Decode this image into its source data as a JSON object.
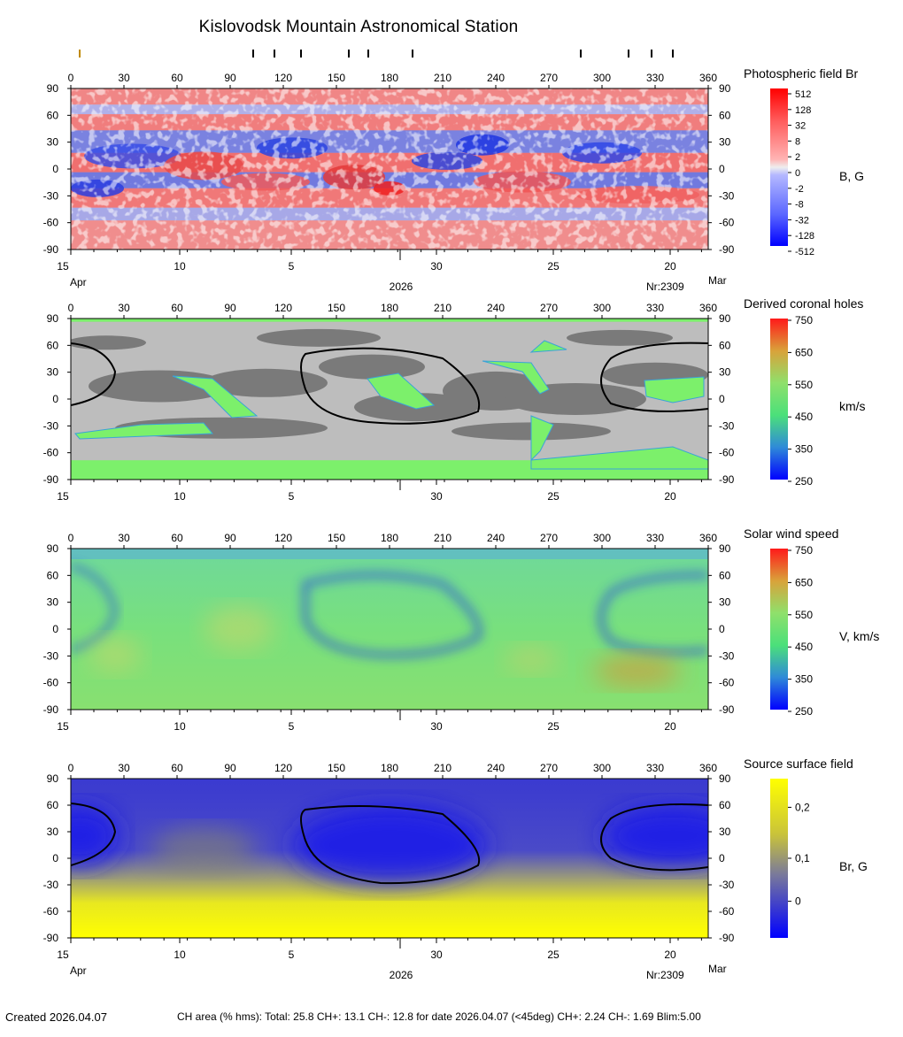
{
  "page": {
    "title": "Kislovodsk Mountain Astronomical Station",
    "created": "Created  2026.04.07",
    "ch_info": "CH area (% hms): Total: 25.8 CH+: 13.1   CH-: 12.8 for date 2026.04.07 (<45deg) CH+: 2.24    CH-: 1.69 Blim:5.00"
  },
  "colors": {
    "frame": "#000000",
    "ch_gray_dark": "#7a7a7a",
    "ch_gray_light": "#bdbdbd",
    "ch_green": "#7cf06b",
    "wind_green": "#72df8a",
    "wind_blue": "#2b55d8",
    "src_blue": "#1a1ae8",
    "src_yellow": "#f7f70a",
    "field_red": "#f05050",
    "field_blue": "#4c63e8"
  },
  "chart_data": [
    {
      "type": "heatmap",
      "title": "Photospheric field Br",
      "unit_label": "B, G",
      "colorbar_ticks": [
        "512",
        "128",
        "32",
        "8",
        "2",
        "0",
        "-2",
        "-8",
        "-32",
        "-128",
        "-512"
      ],
      "x_top": {
        "label": "",
        "ticks": [
          0,
          30,
          60,
          90,
          120,
          150,
          180,
          210,
          240,
          270,
          300,
          330,
          360
        ]
      },
      "y": {
        "ticks": [
          90,
          60,
          30,
          0,
          -30,
          -60,
          -90
        ],
        "range": [
          -90,
          90
        ]
      },
      "date_axis": {
        "ticks": [
          "15",
          "10",
          "5",
          "30",
          "25",
          "20"
        ],
        "left_month": "Apr",
        "right_month": "Mar",
        "year": "2026",
        "rotation": "Nr:2309"
      },
      "marker_longitudes": [
        5,
        103,
        115,
        130,
        157,
        168,
        193,
        288,
        315,
        328,
        340
      ]
    },
    {
      "type": "heatmap",
      "title": "Derived coronal holes",
      "unit_label": "km/s",
      "colorbar_ticks": [
        "750",
        "650",
        "550",
        "450",
        "350",
        "250"
      ],
      "x_top": {
        "ticks": [
          0,
          30,
          60,
          90,
          120,
          150,
          180,
          210,
          240,
          270,
          300,
          330,
          360
        ]
      },
      "y": {
        "ticks": [
          90,
          60,
          30,
          0,
          -30,
          -60,
          -90
        ],
        "range": [
          -90,
          90
        ]
      },
      "date_axis": {
        "ticks": [
          "15",
          "10",
          "5",
          "30",
          "25",
          "20"
        ]
      }
    },
    {
      "type": "heatmap",
      "title": "Solar wind speed",
      "unit_label": "V, km/s",
      "colorbar_ticks": [
        "750",
        "650",
        "550",
        "450",
        "350",
        "250"
      ],
      "x_top": {
        "ticks": [
          0,
          30,
          60,
          90,
          120,
          150,
          180,
          210,
          240,
          270,
          300,
          330,
          360
        ]
      },
      "y": {
        "ticks": [
          90,
          60,
          30,
          0,
          -30,
          -60,
          -90
        ],
        "range": [
          -90,
          90
        ]
      },
      "date_axis": {
        "ticks": [
          "15",
          "10",
          "5",
          "30",
          "25",
          "20"
        ]
      }
    },
    {
      "type": "heatmap",
      "title": "Source surface field",
      "unit_label": "Br, G",
      "colorbar_ticks": [
        "0,2",
        "0,1",
        "0"
      ],
      "x_top": {
        "ticks": [
          0,
          30,
          60,
          90,
          120,
          150,
          180,
          210,
          240,
          270,
          300,
          330,
          360
        ]
      },
      "y": {
        "ticks": [
          90,
          60,
          30,
          0,
          -30,
          -60,
          -90
        ],
        "range": [
          -90,
          90
        ]
      },
      "date_axis": {
        "ticks": [
          "15",
          "10",
          "5",
          "30",
          "25",
          "20"
        ],
        "left_month": "Apr",
        "right_month": "Mar",
        "year": "2026",
        "rotation": "Nr:2309"
      },
      "neutral_line": "closed contours near 0-25 lon, 130-230 lon, 300-360 lon"
    }
  ]
}
